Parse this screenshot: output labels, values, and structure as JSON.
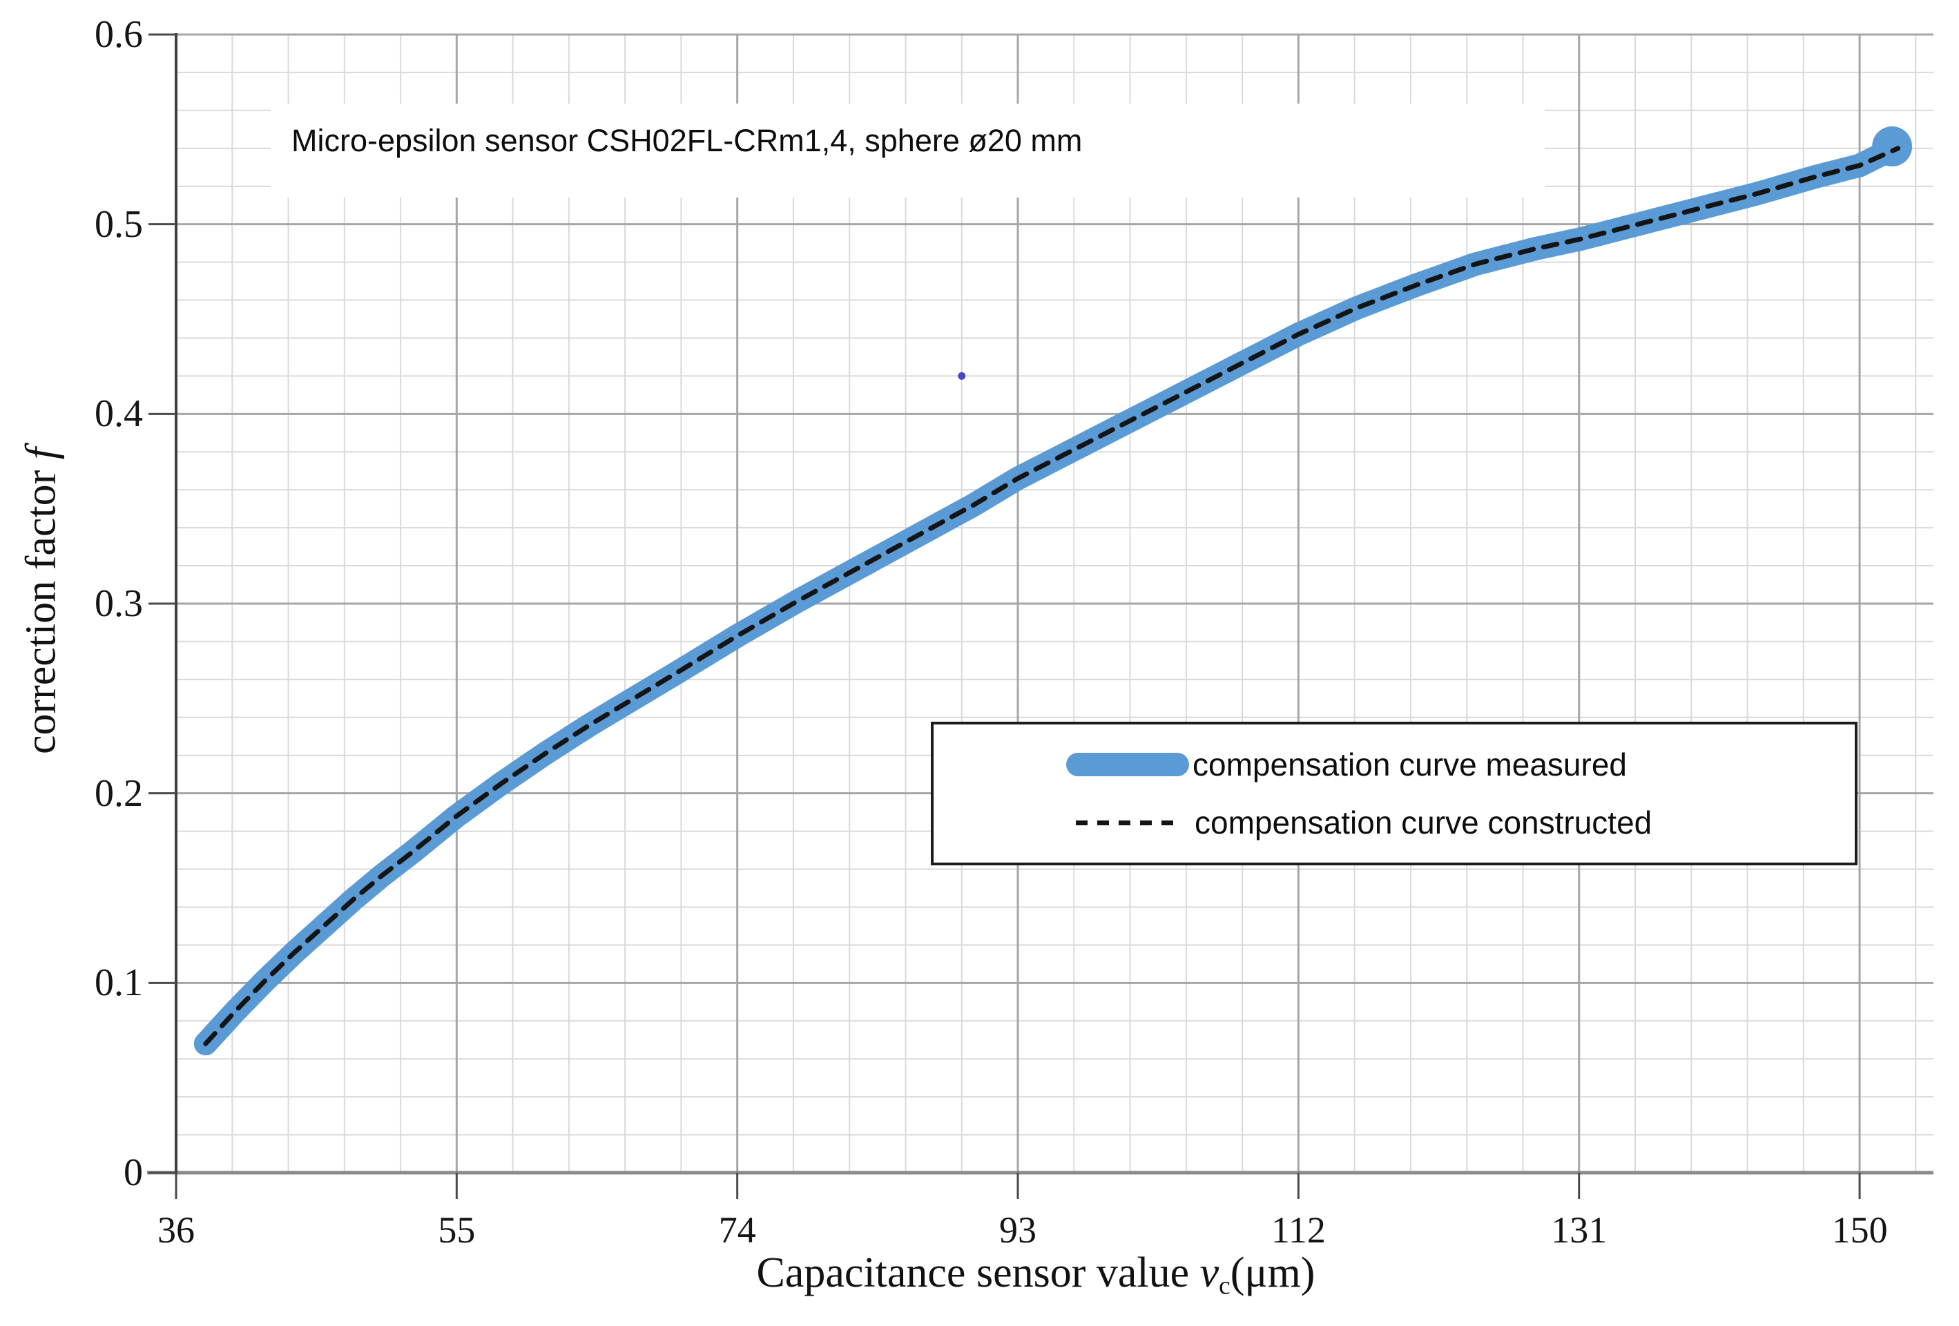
{
  "chart_data": {
    "type": "line",
    "title_annotation": "Micro-epsilon sensor CSH02FL-CRm1,4,   sphere ø20 mm",
    "xlabel_prefix": "Capacitance sensor value ",
    "xlabel_var": "v",
    "xlabel_sub": "c",
    "xlabel_suffix": "(μm)",
    "ylabel_prefix": "correction factor ",
    "ylabel_var": "f",
    "xlim": [
      36,
      155
    ],
    "ylim": [
      0,
      0.6
    ],
    "x_ticks": [
      36,
      55,
      74,
      93,
      112,
      131,
      150
    ],
    "x_tick_labels": [
      "36",
      "55",
      "74",
      "93",
      "112",
      "131",
      "150"
    ],
    "y_ticks": [
      0,
      0.1,
      0.2,
      0.3,
      0.4,
      0.5,
      0.6
    ],
    "y_tick_labels": [
      "0",
      "0.1",
      "0.2",
      "0.3",
      "0.4",
      "0.5",
      "0.6"
    ],
    "x_minor_step": 3.8,
    "y_minor_step": 0.02,
    "grid": "major and minor gridlines on",
    "colors": {
      "measured_blue": "#5B9BD5",
      "constructed_black": "#141414",
      "grid_major": "#a6a6a6",
      "grid_minor": "#d9d9d9",
      "axis_x": "#8a8a8a",
      "axis_y": "#3f3f3f",
      "tick": "#4a4a4a",
      "stray_dot": "#4444cc"
    },
    "legend": {
      "position": "center-right, below middle of plot",
      "entries": [
        {
          "label": "compensation curve measured",
          "style": "thick-rounded-line",
          "color": "#5B9BD5"
        },
        {
          "label": "compensation curve constructed",
          "style": "dashed-line",
          "color": "#141414"
        }
      ]
    },
    "series": [
      {
        "name": "compensation curve measured",
        "color": "#5B9BD5",
        "line_width": 34,
        "end_dot": [
          152.2,
          0.541
        ],
        "points": [
          [
            38,
            0.068
          ],
          [
            40,
            0.085
          ],
          [
            42,
            0.101
          ],
          [
            44,
            0.116
          ],
          [
            46,
            0.13
          ],
          [
            48,
            0.144
          ],
          [
            50,
            0.157
          ],
          [
            52,
            0.169
          ],
          [
            55,
            0.188
          ],
          [
            58,
            0.205
          ],
          [
            61,
            0.221
          ],
          [
            64,
            0.236
          ],
          [
            67,
            0.25
          ],
          [
            70,
            0.264
          ],
          [
            74,
            0.283
          ],
          [
            78,
            0.301
          ],
          [
            82,
            0.318
          ],
          [
            86,
            0.335
          ],
          [
            90,
            0.352
          ],
          [
            93,
            0.366
          ],
          [
            96,
            0.378
          ],
          [
            100,
            0.394
          ],
          [
            104,
            0.41
          ],
          [
            108,
            0.426
          ],
          [
            112,
            0.442
          ],
          [
            116,
            0.456
          ],
          [
            120,
            0.468
          ],
          [
            124,
            0.479
          ],
          [
            128,
            0.487
          ],
          [
            131,
            0.492
          ],
          [
            135,
            0.5
          ],
          [
            139,
            0.508
          ],
          [
            143,
            0.516
          ],
          [
            147,
            0.525
          ],
          [
            150,
            0.531
          ],
          [
            151.8,
            0.538
          ]
        ]
      },
      {
        "name": "compensation curve constructed",
        "color": "#141414",
        "line_width": 7,
        "dash": [
          20,
          15
        ],
        "points": [
          [
            38,
            0.068
          ],
          [
            40,
            0.085
          ],
          [
            42,
            0.101
          ],
          [
            44,
            0.116
          ],
          [
            46,
            0.13
          ],
          [
            48,
            0.144
          ],
          [
            50,
            0.157
          ],
          [
            52,
            0.169
          ],
          [
            55,
            0.188
          ],
          [
            58,
            0.205
          ],
          [
            61,
            0.221
          ],
          [
            64,
            0.236
          ],
          [
            67,
            0.25
          ],
          [
            70,
            0.264
          ],
          [
            74,
            0.283
          ],
          [
            78,
            0.301
          ],
          [
            82,
            0.318
          ],
          [
            86,
            0.335
          ],
          [
            90,
            0.352
          ],
          [
            93,
            0.366
          ],
          [
            96,
            0.378
          ],
          [
            100,
            0.394
          ],
          [
            104,
            0.41
          ],
          [
            108,
            0.426
          ],
          [
            112,
            0.442
          ],
          [
            116,
            0.456
          ],
          [
            120,
            0.468
          ],
          [
            124,
            0.479
          ],
          [
            128,
            0.487
          ],
          [
            131,
            0.492
          ],
          [
            135,
            0.5
          ],
          [
            139,
            0.508
          ],
          [
            143,
            0.516
          ],
          [
            147,
            0.525
          ],
          [
            150,
            0.531
          ],
          [
            152.6,
            0.54
          ]
        ]
      }
    ],
    "stray_point": {
      "x": 89.2,
      "y": 0.42,
      "color": "#4444cc"
    }
  }
}
